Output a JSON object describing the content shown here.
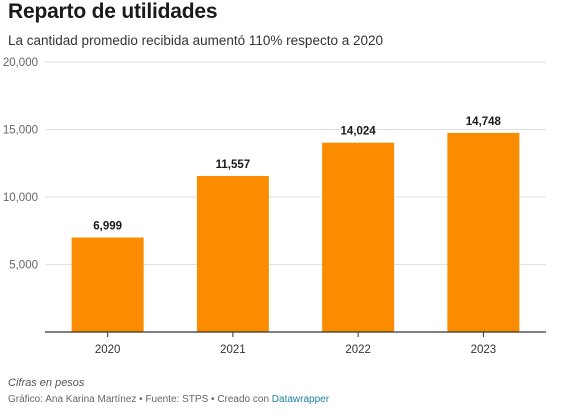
{
  "header": {
    "title": "Reparto de utilidades",
    "subtitle": "La cantidad promedio recibida aumentó 110% respecto a 2020"
  },
  "footer": {
    "note": "Cifras en pesos",
    "credit_prefix": "Gráfico: Ana Karina Martínez • Fuente: STPS • Creado con ",
    "credit_link": "Datawrapper"
  },
  "colors": {
    "bar": "#fb8c00",
    "grid": "#e0e0e0",
    "axis": "#333333"
  },
  "chart_data": {
    "type": "bar",
    "title": "Reparto de utilidades",
    "subtitle": "La cantidad promedio recibida aumentó 110% respecto a 2020",
    "categories": [
      "2020",
      "2021",
      "2022",
      "2023"
    ],
    "values": [
      6999,
      11557,
      14024,
      14748
    ],
    "data_labels": [
      "6,999",
      "11,557",
      "14,024",
      "14,748"
    ],
    "y_ticks": [
      5000,
      10000,
      15000,
      20000
    ],
    "y_tick_labels": [
      "5,000",
      "10,000",
      "15,000",
      "20,000"
    ],
    "ylim": [
      0,
      20000
    ],
    "grid": true,
    "legend": "none"
  }
}
